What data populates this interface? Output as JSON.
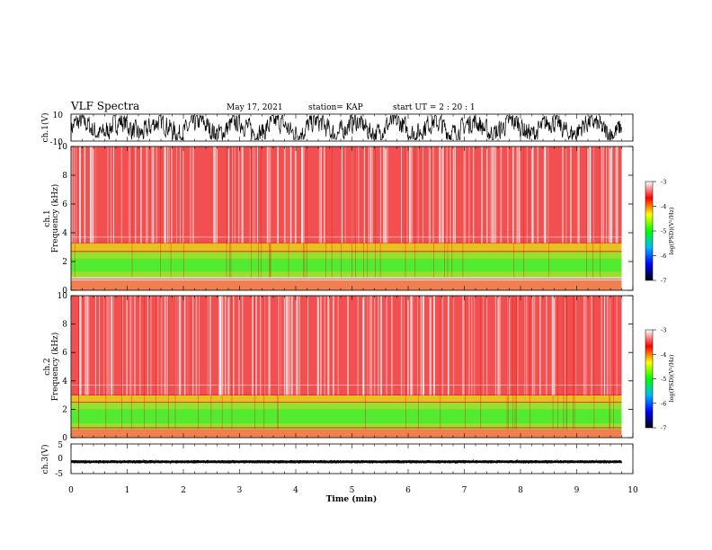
{
  "header": {
    "title": "VLF Spectra",
    "date": "May 17, 2021",
    "station": "station= KAP",
    "start": "start  UT =   2 : 20 : 1"
  },
  "colors": {
    "trace": "#000000",
    "background": "#ffffff",
    "colormap": [
      "#ffffff",
      "#ff0000",
      "#ffff00",
      "#00ff00",
      "#00bcff",
      "#0000ff",
      "#000000"
    ]
  },
  "chart_data": [
    {
      "type": "line",
      "id": "ch1-waveform",
      "ylabel": "ch.1(V)",
      "ylim": [
        -10,
        10
      ],
      "yticks": [
        "10",
        "-10"
      ],
      "xlim": [
        0,
        10
      ],
      "description_values": {
        "mean": 0,
        "amplitude_range": [
          -9,
          9
        ]
      }
    },
    {
      "type": "heatmap",
      "id": "ch1-spectrogram",
      "ylabel": "ch.1",
      "ylabel2": "Frequency  (kHz)",
      "ylim": [
        0,
        10
      ],
      "yticks": [
        "0",
        "2",
        "4",
        "6",
        "8",
        "10"
      ],
      "xlim": [
        0,
        9.8
      ],
      "bands_khz": [
        {
          "from": 0.0,
          "to": 0.7,
          "level": "mixed"
        },
        {
          "from": 0.9,
          "to": 2.7,
          "level": -5.0
        },
        {
          "from": 2.7,
          "to": 3.3,
          "level": -4.3
        },
        {
          "from": 3.3,
          "to": 10.0,
          "level": -3.5
        }
      ],
      "colorbar": {
        "label": "log(PSD)(V²/Hz)",
        "range": [
          -7,
          -3
        ],
        "ticks": [
          "-3",
          "-4",
          "-5",
          "-6",
          "-7"
        ]
      }
    },
    {
      "type": "heatmap",
      "id": "ch2-spectrogram",
      "ylabel": "ch.2",
      "ylabel2": "Frequency  (kHz)",
      "ylim": [
        0,
        10
      ],
      "yticks": [
        "0",
        "2",
        "4",
        "6",
        "8",
        "10"
      ],
      "xlim": [
        0,
        9.8
      ],
      "bands_khz": [
        {
          "from": 0.0,
          "to": 0.6,
          "level": "mixed"
        },
        {
          "from": 0.6,
          "to": 2.5,
          "level": -5.0
        },
        {
          "from": 2.5,
          "to": 3.0,
          "level": -4.3
        },
        {
          "from": 3.0,
          "to": 10.0,
          "level": -3.5
        }
      ],
      "colorbar": {
        "label": "log(PSD)(V²/Hz)",
        "range": [
          -7,
          -3
        ],
        "ticks": [
          "-3",
          "-4",
          "-5",
          "-6",
          "-7"
        ]
      }
    },
    {
      "type": "line",
      "id": "ch3-waveform",
      "ylabel": "ch.3(V)",
      "ylim": [
        -5,
        5
      ],
      "yticks": [
        "5",
        "0",
        "-5"
      ],
      "xlim": [
        0,
        10
      ],
      "description_values": {
        "mean": -1,
        "amplitude_range": [
          -1.6,
          -0.6
        ]
      }
    }
  ],
  "xaxis": {
    "label": "Time  (min)",
    "range": [
      0,
      10
    ],
    "ticks": [
      "0",
      "1",
      "2",
      "3",
      "4",
      "5",
      "6",
      "7",
      "8",
      "9",
      "10"
    ]
  }
}
